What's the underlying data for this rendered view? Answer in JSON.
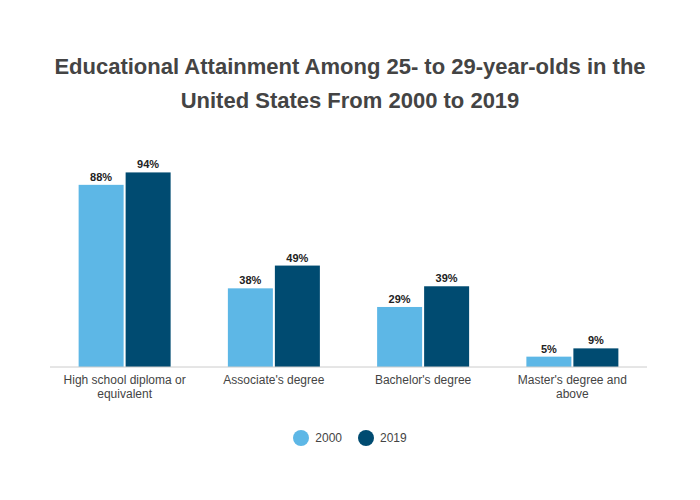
{
  "chart_data": {
    "type": "bar",
    "title": "Educational Attainment Among 25- to 29-year-olds in the United States From 2000 to 2019",
    "categories": [
      "High school diploma or equivalent",
      "Associate's degree",
      "Bachelor's degree",
      "Master's degree and above"
    ],
    "series": [
      {
        "name": "2000",
        "color": "#5db7e6",
        "values": [
          88,
          38,
          29,
          5
        ],
        "value_labels": [
          "88%",
          "38%",
          "29%",
          "5%"
        ]
      },
      {
        "name": "2019",
        "color": "#004b71",
        "values": [
          94,
          49,
          39,
          9
        ],
        "value_labels": [
          "94%",
          "49%",
          "39%",
          "9%"
        ]
      }
    ],
    "ylim": [
      0,
      100
    ],
    "grid": false,
    "legend": "bottom",
    "data_labels": true,
    "tick_labels": "x"
  }
}
